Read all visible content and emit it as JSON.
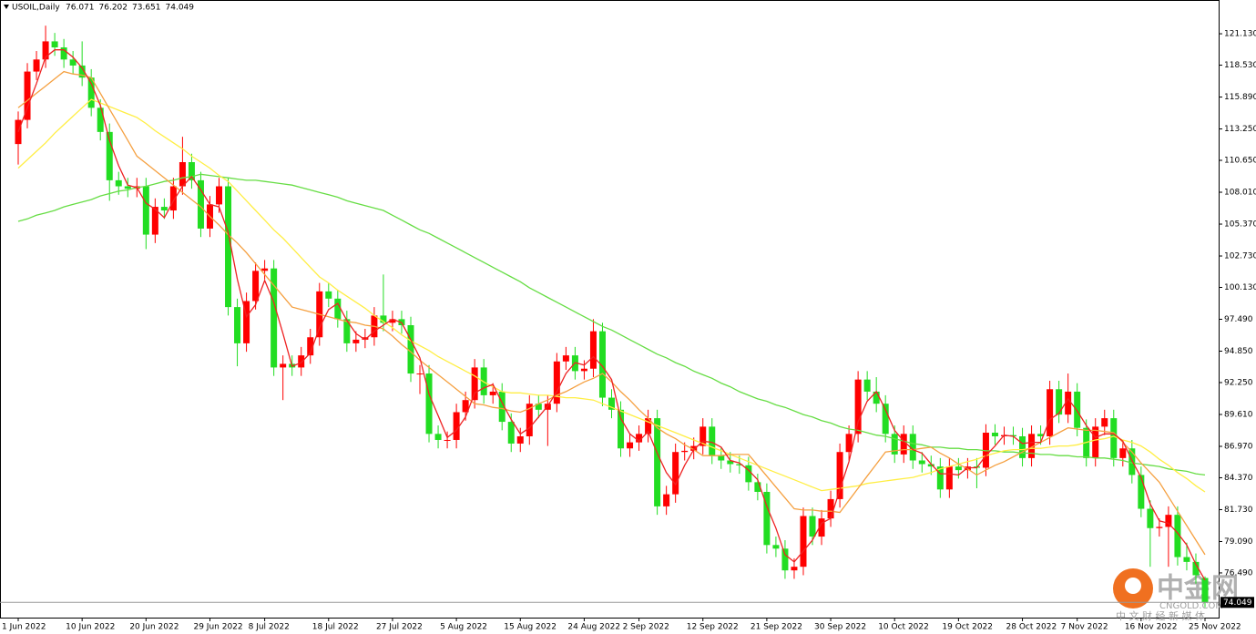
{
  "chart_data": {
    "type": "candlestick",
    "title": "USOIL,Daily",
    "up_color": "#ff0000",
    "down_color": "#22dd22",
    "categories": [
      "1 Jun 2022",
      null,
      null,
      null,
      null,
      null,
      null,
      "10 Jun 2022",
      null,
      null,
      null,
      null,
      null,
      null,
      "20 Jun 2022",
      null,
      null,
      null,
      null,
      null,
      null,
      "29 Jun 2022",
      null,
      null,
      null,
      null,
      null,
      "8 Jul 2022",
      null,
      null,
      null,
      null,
      null,
      null,
      "18 Jul 2022",
      null,
      null,
      null,
      null,
      null,
      null,
      "27 Jul 2022",
      null,
      null,
      null,
      null,
      null,
      null,
      "5 Aug 2022",
      null,
      null,
      null,
      null,
      null,
      null,
      "15 Aug 2022",
      null,
      null,
      null,
      null,
      null,
      null,
      "24 Aug 2022",
      null,
      null,
      null,
      null,
      null,
      "2 Sep 2022",
      null,
      null,
      null,
      null,
      null,
      null,
      "12 Sep 2022",
      null,
      null,
      null,
      null,
      null,
      null,
      "21 Sep 2022",
      null,
      null,
      null,
      null,
      null,
      null,
      "30 Sep 2022",
      null,
      null,
      null,
      null,
      null,
      null,
      "10 Oct 2022",
      null,
      null,
      null,
      null,
      null,
      null,
      "19 Oct 2022",
      null,
      null,
      null,
      null,
      null,
      null,
      "28 Oct 2022",
      null,
      null,
      null,
      null,
      null,
      "7 Nov 2022",
      null,
      null,
      null,
      null,
      null,
      null,
      "16 Nov 2022",
      null,
      null,
      null,
      null,
      null,
      null,
      "25 Nov 2022"
    ],
    "open": [
      112,
      114,
      118,
      119,
      120.5,
      120,
      119,
      118.5,
      117.5,
      115,
      113,
      109,
      108.5,
      108.3,
      108.5,
      104.5,
      106.8,
      106.5,
      108.5,
      110.5,
      109,
      105,
      107,
      108.5,
      98.5,
      95.5,
      99,
      101.5,
      101.7,
      93.5,
      93.8,
      93.5,
      94.5,
      96,
      99.8,
      99.2,
      97.5,
      95.5,
      95.8,
      96,
      97.8,
      97.2,
      97.5,
      97,
      93,
      93,
      88,
      87.5,
      87.5,
      89.8,
      90.8,
      93.5,
      91.2,
      91.5,
      89,
      87.2,
      87.8,
      90.5,
      90,
      90.5,
      94,
      94.5,
      93.2,
      93.4,
      96.5,
      91,
      90,
      86.8,
      87.3,
      88,
      89.3,
      82,
      83,
      86.5,
      86.6,
      87,
      88.6,
      86.2,
      85.8,
      85.5,
      85.4,
      84,
      83.2,
      78.8,
      78.5,
      76.7,
      77,
      81.2,
      79.5,
      81,
      82.6,
      86.5,
      88,
      92.5,
      91.5,
      90.5,
      88,
      86.3,
      88,
      85.8,
      85.5,
      85.3,
      83.4,
      85.3,
      85,
      85.3,
      85.2,
      88.1,
      87.8,
      87.9,
      87.8,
      86,
      88,
      87.8,
      91.7,
      89.6,
      91.5,
      88.5,
      86,
      88.6,
      89.3,
      86,
      86.8,
      84.6,
      81.8,
      80.2,
      80.3,
      81.3,
      77.8,
      77.4,
      76.071
    ],
    "high": [
      114.7,
      118.7,
      119.7,
      121.8,
      121.2,
      120.7,
      119.7,
      120.5,
      118.2,
      115.7,
      113.7,
      109.7,
      109.2,
      109.2,
      109.2,
      107.5,
      107.5,
      109.2,
      112.6,
      111.2,
      109.7,
      107.7,
      109.2,
      109.2,
      99.2,
      99.7,
      102.2,
      102.4,
      102.4,
      94.5,
      94.5,
      95.2,
      96.7,
      100.5,
      100.5,
      99.9,
      98.2,
      96.5,
      96.7,
      98.5,
      101.2,
      98.2,
      98.2,
      97.7,
      93.7,
      93.7,
      88.7,
      88.2,
      90.5,
      91.5,
      94.2,
      94.2,
      92.2,
      92.2,
      89.7,
      88.5,
      91.2,
      91.2,
      91.2,
      94.7,
      95.2,
      95.2,
      94.1,
      97.5,
      97.2,
      91.7,
      90.7,
      88,
      88.7,
      90,
      90,
      83.7,
      87.2,
      87.3,
      87.7,
      89.3,
      89.3,
      86.9,
      86.5,
      86.2,
      86.1,
      84.7,
      83.9,
      79.5,
      79.2,
      77.7,
      81.9,
      81.9,
      81.7,
      83.3,
      87.2,
      88.7,
      93.2,
      93.2,
      92.7,
      91.2,
      88.7,
      88.7,
      88.7,
      86.5,
      86.2,
      86,
      86,
      86,
      86,
      86,
      88.8,
      88.8,
      88.6,
      88.6,
      88.5,
      88.7,
      88.7,
      92.4,
      92.4,
      93,
      92.2,
      89.2,
      89.3,
      90,
      90,
      87.5,
      87.5,
      85.3,
      82.5,
      81,
      82,
      82,
      79,
      78.1,
      76.202
    ],
    "low": [
      110.3,
      113.3,
      117.3,
      118.3,
      119.3,
      118.3,
      117.8,
      116.8,
      114.3,
      112.3,
      107.3,
      107.8,
      107.6,
      107.6,
      103.3,
      103.8,
      105.8,
      105.8,
      107.8,
      108.3,
      104.3,
      104.3,
      106.3,
      97.8,
      93.6,
      94.8,
      98.3,
      100.8,
      92.8,
      90.8,
      92.8,
      92.8,
      93.8,
      95.3,
      98.5,
      96.8,
      94.8,
      94.8,
      95.1,
      95.3,
      96.5,
      96.5,
      96.3,
      92.3,
      91.3,
      87.3,
      86.8,
      86.8,
      86.8,
      89.1,
      90.1,
      90.5,
      90.5,
      88.3,
      86.5,
      86.5,
      87.1,
      89.3,
      87,
      89.8,
      93.3,
      92.5,
      92.5,
      92.7,
      90.3,
      89.3,
      86.1,
      86.1,
      86.6,
      87.3,
      81.3,
      81.3,
      82.3,
      85.8,
      85.9,
      86.3,
      85.5,
      85.1,
      84.8,
      84.7,
      83.3,
      82.5,
      78.1,
      77.8,
      76,
      76,
      76.3,
      78.8,
      78.8,
      80.3,
      81.9,
      85.8,
      87.3,
      90.8,
      89.8,
      87.3,
      85.6,
      85.6,
      85.1,
      84.8,
      84.6,
      82.7,
      82.7,
      84.3,
      84.3,
      83.5,
      84.5,
      87.1,
      87.1,
      87.1,
      85.3,
      85.3,
      87.1,
      87.1,
      88.9,
      88.9,
      87.8,
      85.3,
      85.3,
      87.9,
      85.3,
      85.3,
      83.9,
      81.1,
      77,
      79.5,
      77,
      77.1,
      76.7,
      75.6,
      73.651
    ],
    "close": [
      114,
      118,
      119,
      120.5,
      120,
      119,
      118.5,
      117.5,
      115,
      113,
      109,
      108.5,
      108.3,
      108.5,
      104.5,
      106.8,
      106.5,
      108.5,
      110.5,
      109,
      105,
      107,
      108.5,
      98.5,
      95.5,
      99,
      101.5,
      101.7,
      93.5,
      93.8,
      93.5,
      94.5,
      96,
      99.8,
      99.2,
      97.5,
      95.5,
      95.8,
      96,
      97.8,
      97.2,
      97.5,
      97,
      93,
      93,
      88,
      87.5,
      87.5,
      89.8,
      90.8,
      93.5,
      91.2,
      91.5,
      89,
      87.2,
      87.8,
      90.5,
      90,
      90.5,
      94,
      94.5,
      93.2,
      93.4,
      96.5,
      91,
      90,
      86.8,
      87.3,
      88,
      89.3,
      82,
      83,
      86.5,
      86.6,
      87,
      88.6,
      86.2,
      85.8,
      85.5,
      85.4,
      84,
      83.2,
      78.8,
      78.5,
      76.7,
      77,
      81.2,
      79.5,
      81,
      82.6,
      86.5,
      88,
      92.5,
      91.5,
      90.5,
      88,
      86.3,
      88,
      85.8,
      85.5,
      85.3,
      83.4,
      85.3,
      85,
      85.3,
      85.2,
      88.1,
      87.8,
      87.9,
      87.8,
      86,
      88,
      87.8,
      91.7,
      89.6,
      91.5,
      88.5,
      86,
      88.6,
      89.3,
      86,
      86.8,
      84.6,
      81.8,
      80.2,
      80.3,
      81.3,
      77.8,
      77.4,
      76.3,
      74.049
    ],
    "ma_lines": [
      {
        "color": "#66dd44",
        "values": [
          105.6,
          105.8,
          106.1,
          106.3,
          106.5,
          106.8,
          107,
          107.2,
          107.4,
          107.7,
          107.9,
          108.1,
          108.2,
          108.4,
          108.5,
          108.7,
          108.9,
          109,
          109.2,
          109.3,
          109.5,
          109.4,
          109.3,
          109.2,
          109.1,
          109,
          109,
          108.9,
          108.8,
          108.7,
          108.6,
          108.4,
          108.2,
          108,
          107.8,
          107.6,
          107.3,
          107.1,
          106.9,
          106.7,
          106.5,
          106.1,
          105.7,
          105.3,
          104.9,
          104.6,
          104.2,
          103.8,
          103.4,
          103,
          102.6,
          102.2,
          101.8,
          101.4,
          101,
          100.6,
          100.1,
          99.7,
          99.3,
          98.9,
          98.5,
          98.1,
          97.7,
          97.3,
          96.9,
          96.6,
          96.2,
          95.8,
          95.4,
          95,
          94.6,
          94.3,
          93.9,
          93.6,
          93.2,
          92.9,
          92.6,
          92.2,
          91.9,
          91.5,
          91.2,
          90.9,
          90.7,
          90.4,
          90.2,
          89.9,
          89.6,
          89.4,
          89.1,
          88.9,
          88.6,
          88.4,
          88.3,
          88.1,
          87.9,
          87.8,
          87.6,
          87.4,
          87.2,
          87.1,
          86.9,
          86.9,
          86.8,
          86.8,
          86.7,
          86.7,
          86.6,
          86.6,
          86.5,
          86.5,
          86.4,
          86.4,
          86.3,
          86.3,
          86.2,
          86.2,
          86.1,
          86.1,
          86,
          86,
          85.9,
          85.8,
          85.6,
          85.5,
          85.4,
          85.3,
          85.1,
          85,
          84.9,
          84.7,
          84.6
        ]
      },
      {
        "color": "#ffee44",
        "values": [
          110,
          110.7,
          111.4,
          112.1,
          112.9,
          113.6,
          114.3,
          115,
          115.7,
          115.4,
          115.1,
          114.8,
          114.5,
          114.2,
          113.7,
          113.1,
          112.6,
          112.1,
          111.6,
          111,
          110.5,
          110,
          109.4,
          108.9,
          108.1,
          107.3,
          106.5,
          105.7,
          104.9,
          104.2,
          103.4,
          102.6,
          101.8,
          101,
          100.5,
          99.9,
          99.4,
          98.9,
          98.4,
          97.8,
          97.3,
          96.8,
          96.2,
          95.7,
          95.3,
          94.9,
          94.4,
          94,
          93.6,
          93.2,
          92.8,
          92.3,
          91.9,
          91.5,
          91.4,
          91.4,
          91.3,
          91.2,
          91.2,
          91.1,
          91,
          91,
          90.9,
          90.8,
          90.5,
          90.2,
          89.9,
          89.6,
          89.3,
          89,
          88.7,
          88.4,
          88.1,
          87.8,
          87.5,
          87.2,
          86.9,
          86.6,
          86.3,
          86,
          85.7,
          85.4,
          85.1,
          84.8,
          84.5,
          84.2,
          83.9,
          83.6,
          83.3,
          83.4,
          83.5,
          83.6,
          83.7,
          83.9,
          84,
          84.1,
          84.2,
          84.3,
          84.4,
          84.6,
          84.8,
          85.1,
          85.3,
          85.5,
          85.7,
          85.9,
          86.2,
          86.4,
          86.6,
          86.7,
          86.7,
          86.8,
          86.8,
          86.9,
          87,
          87,
          87.1,
          87.3,
          87.5,
          87.6,
          87.8,
          87.5,
          87.3,
          87,
          86.5,
          85.9,
          85.4,
          84.8,
          84.3,
          83.7,
          83.2
        ]
      },
      {
        "color": "#f5a040",
        "values": [
          115,
          115.6,
          116.2,
          116.8,
          117.4,
          118,
          117.8,
          117.7,
          117.5,
          116.2,
          114.9,
          113.6,
          112.3,
          111,
          110.4,
          109.8,
          109.2,
          108.6,
          108,
          107.4,
          106.8,
          106,
          105.3,
          104.5,
          103.8,
          103,
          102.1,
          101.2,
          100.3,
          99.4,
          98.5,
          98.3,
          98.1,
          97.9,
          97.7,
          97.5,
          97.3,
          97.2,
          97,
          96.9,
          96.7,
          96.1,
          95.4,
          94.8,
          94.1,
          93.5,
          92.9,
          92.3,
          91.7,
          91.1,
          90.5,
          90.4,
          90.2,
          90.1,
          89.9,
          89.8,
          90.1,
          90.5,
          90.8,
          91.2,
          91.5,
          91.9,
          92.3,
          92.6,
          93,
          92.3,
          91.5,
          90.8,
          90,
          89.3,
          88.5,
          88,
          87.6,
          87.1,
          86.7,
          86.2,
          86.2,
          86.2,
          86.3,
          86.3,
          86.3,
          85.4,
          84.5,
          83.6,
          82.7,
          81.8,
          81.7,
          81.7,
          81.6,
          81.6,
          81.5,
          82.5,
          83.5,
          84.5,
          85.5,
          86.5,
          86.6,
          86.7,
          86.7,
          86.8,
          86.9,
          86.4,
          86,
          85.5,
          85.1,
          84.6,
          85,
          85.4,
          85.7,
          86.1,
          86.5,
          86.9,
          87.3,
          87.7,
          88.1,
          88.5,
          88.4,
          88.3,
          88.3,
          88.2,
          88.1,
          87.3,
          86.5,
          85.6,
          84.8,
          84,
          82.8,
          81.6,
          80.4,
          79.2,
          78
        ]
      },
      {
        "color": "#ee2222",
        "values": [
          113,
          115,
          117,
          119.2,
          119.8,
          119.8,
          119.2,
          118.3,
          117,
          115.2,
          112.3,
          110.2,
          108.6,
          108.4,
          107.1,
          106.6,
          105.9,
          107.3,
          108.5,
          109.3,
          108.2,
          107,
          106.8,
          104.7,
          100.8,
          97.7,
          98.7,
          100.7,
          98.9,
          96.3,
          93.6,
          93.9,
          94.7,
          96.8,
          98.3,
          98.8,
          97.4,
          96.3,
          95.8,
          96.5,
          97,
          97.5,
          97.2,
          95.8,
          94.3,
          91.3,
          89.5,
          87.7,
          88.3,
          89.4,
          91.4,
          91.8,
          92.1,
          90.6,
          89.2,
          88,
          88.5,
          89.4,
          90.3,
          91.5,
          93,
          93.9,
          93.7,
          94.4,
          93.6,
          92.5,
          89.3,
          88,
          87.4,
          88.2,
          86.4,
          84.8,
          83.8,
          85.4,
          86.7,
          87.4,
          87.3,
          86.9,
          85.8,
          85.6,
          85,
          84.2,
          82,
          80.2,
          78,
          77.4,
          78.3,
          79.2,
          80.6,
          81,
          83.4,
          85.7,
          89,
          90.7,
          91.5,
          90,
          88.3,
          87.4,
          86.7,
          86.4,
          85.5,
          84.7,
          84.7,
          84.6,
          85.2,
          85.2,
          86.2,
          87,
          87.9,
          87.8,
          87.2,
          87.3,
          87.3,
          89.2,
          89.7,
          90.9,
          89.9,
          88.7,
          87.7,
          88,
          88,
          87.4,
          85.8,
          84.4,
          82.2,
          80.8,
          80.6,
          79.8,
          78.8,
          77.2,
          75.9
        ]
      }
    ],
    "ylim": [
      72.79,
      123.85
    ],
    "yticks": [
      {
        "value": 121.13,
        "label": "121.130"
      },
      {
        "value": 118.53,
        "label": "118.530"
      },
      {
        "value": 115.89,
        "label": "115.890"
      },
      {
        "value": 113.25,
        "label": "113.250"
      },
      {
        "value": 110.65,
        "label": "110.650"
      },
      {
        "value": 108.01,
        "label": "108.010"
      },
      {
        "value": 105.37,
        "label": "105.370"
      },
      {
        "value": 102.73,
        "label": "102.730"
      },
      {
        "value": 100.13,
        "label": "100.130"
      },
      {
        "value": 97.49,
        "label": "97.490"
      },
      {
        "value": 94.85,
        "label": "94.850"
      },
      {
        "value": 92.25,
        "label": "92.250"
      },
      {
        "value": 89.61,
        "label": "89.610"
      },
      {
        "value": 86.97,
        "label": "86.970"
      },
      {
        "value": 84.37,
        "label": "84.370"
      },
      {
        "value": 81.73,
        "label": "81.730"
      },
      {
        "value": 79.09,
        "label": "79.090"
      },
      {
        "value": 76.49,
        "label": "76.490"
      }
    ]
  },
  "watermark": {
    "logo": "中金网",
    "site": "CNGOLD.COM",
    "slogan": "中 文 财 经 新 媒 体"
  }
}
